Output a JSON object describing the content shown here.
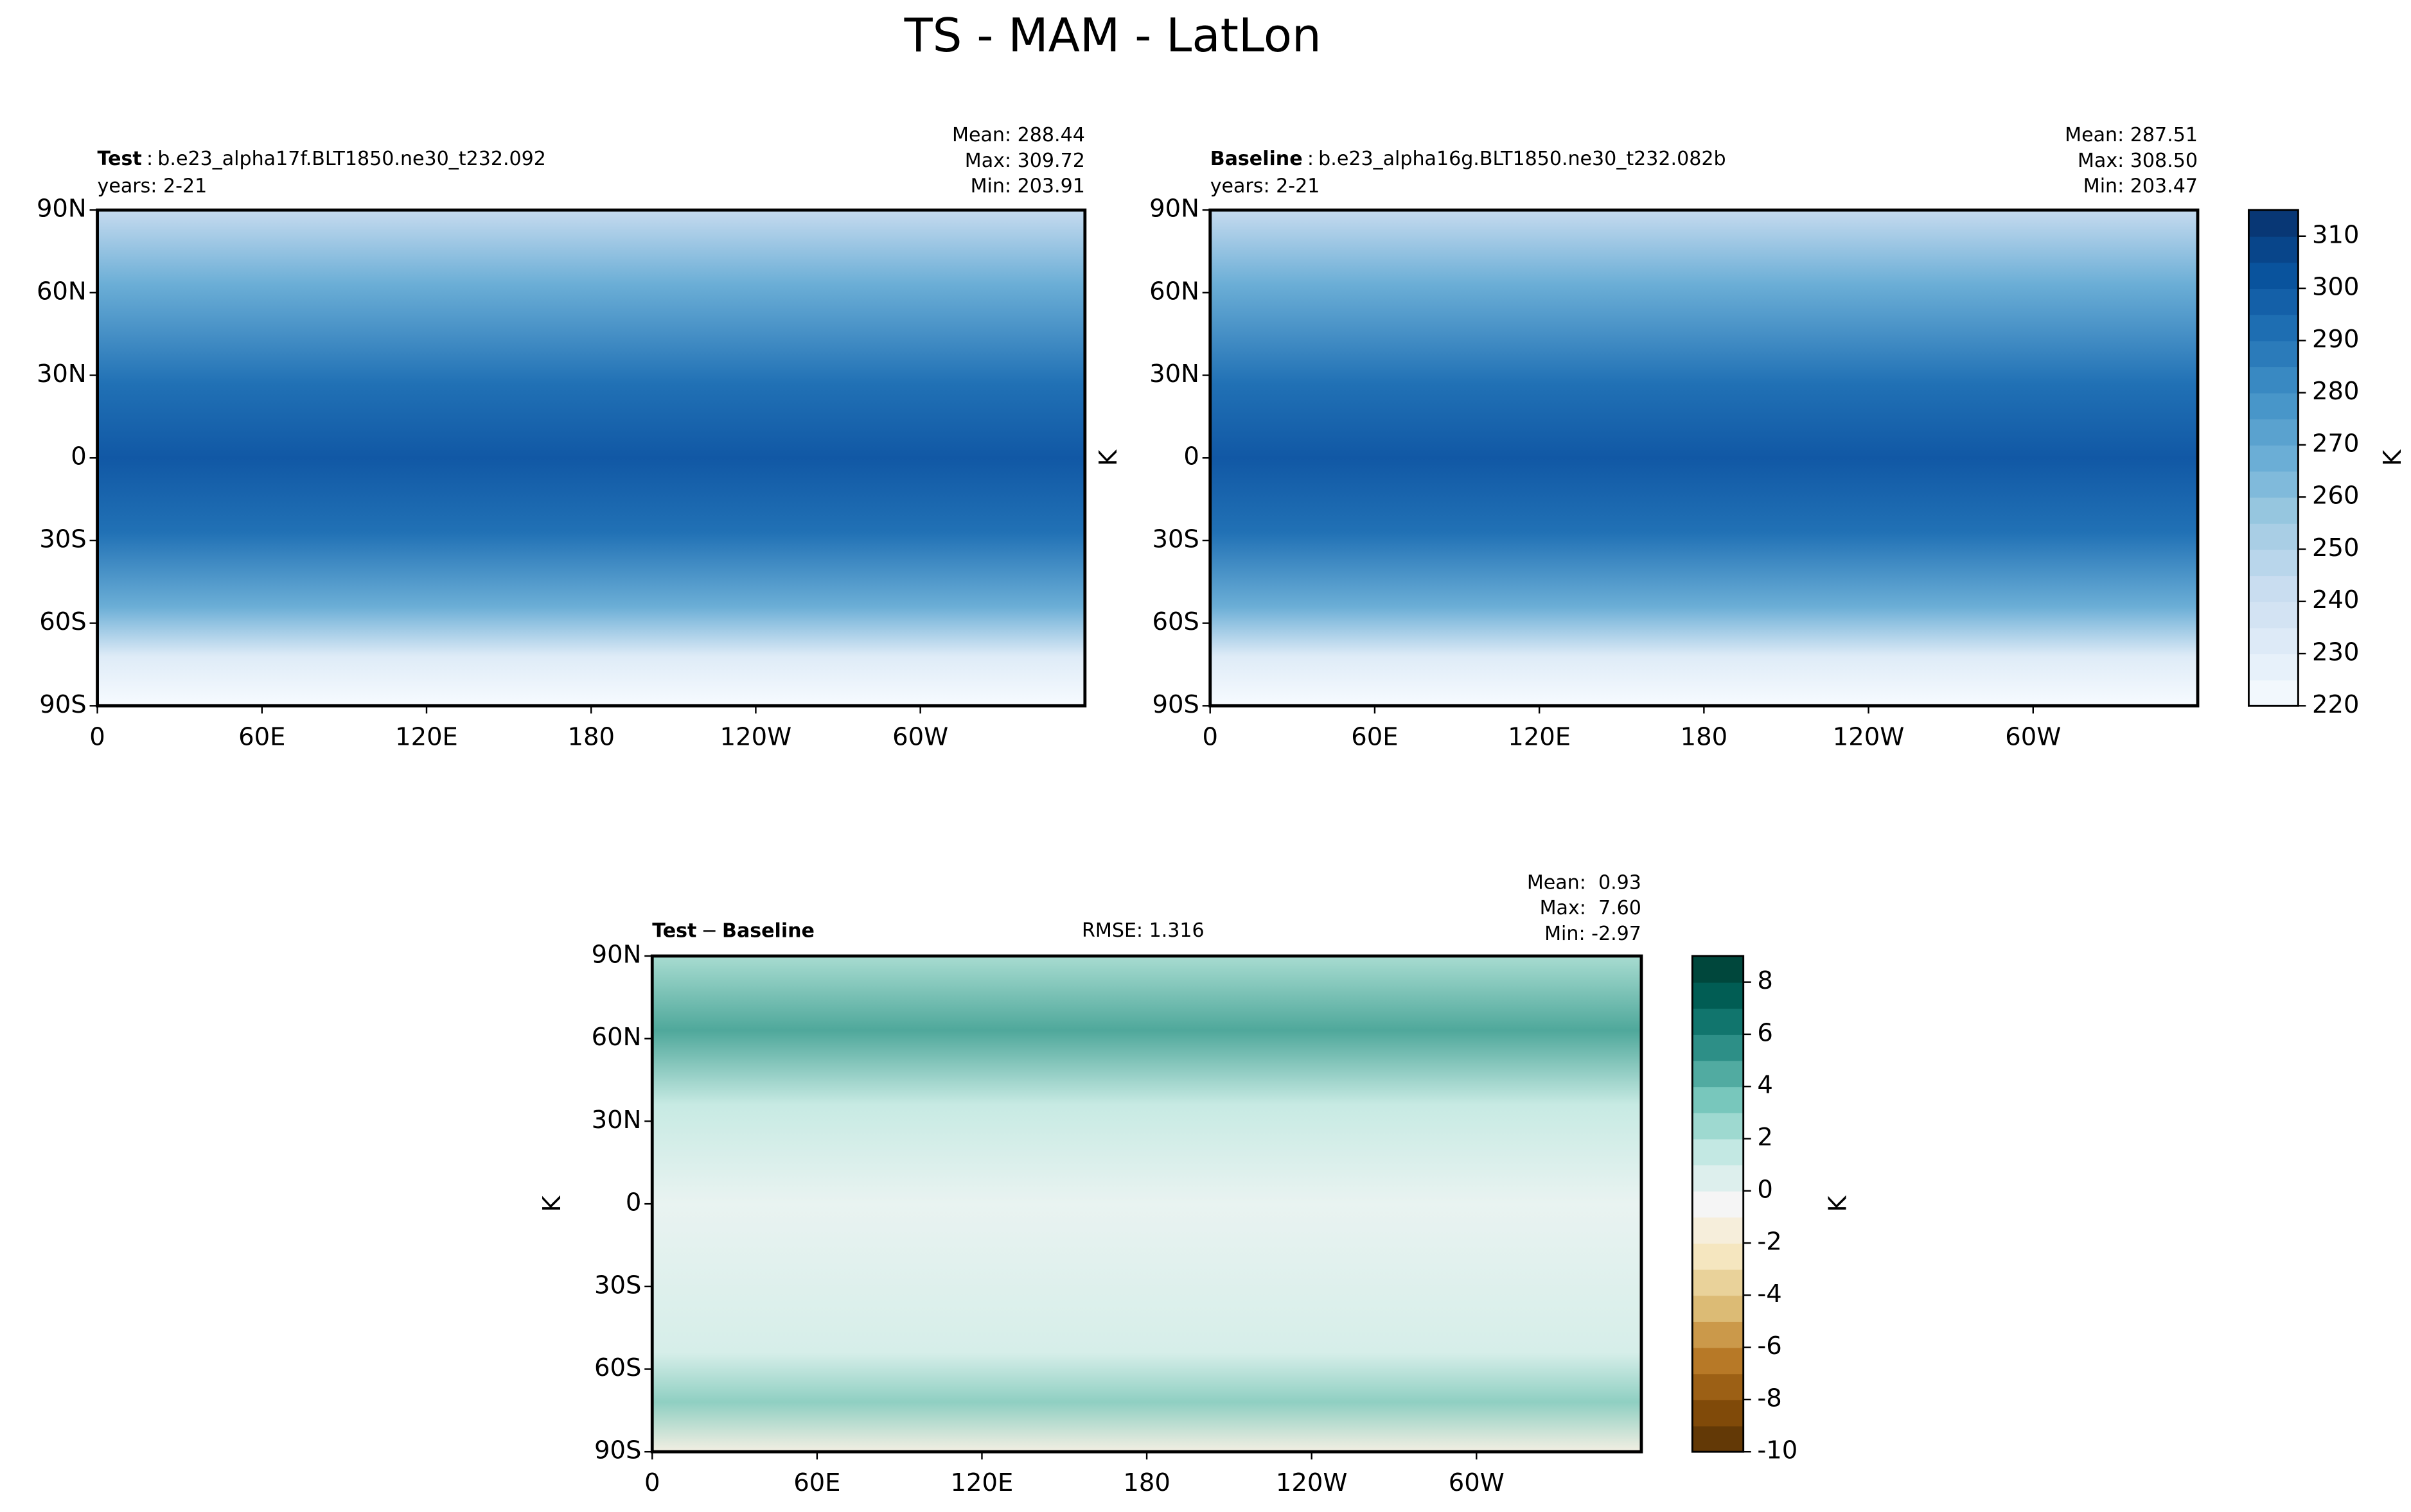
{
  "title": "TS - MAM - LatLon",
  "panels": [
    {
      "heading": [
        {
          "text": "Test",
          "bold": true
        },
        {
          "text": ":",
          "bold": false
        },
        {
          "text": "b.e23_alpha17f.BLT1850.ne30_t232.092",
          "bold": false
        }
      ],
      "years": "years: 2-21",
      "stats": [
        "Mean: 288.44",
        "Max: 309.72",
        "Min: 203.91"
      ],
      "xlim": [
        0,
        360
      ],
      "ylim": [
        -90,
        90
      ],
      "xticks": [
        0,
        {
          "value": 60,
          "label": "60E"
        },
        {
          "value": 120,
          "label": "120E"
        },
        180,
        {
          "value": 240,
          "label": "120W"
        },
        {
          "value": 300,
          "label": "60W"
        }
      ],
      "yticks": [
        {
          "value": -90,
          "label": "90S"
        },
        {
          "value": -60,
          "label": "60S"
        },
        {
          "value": -30,
          "label": "30S"
        },
        0,
        {
          "value": 30,
          "label": "30N"
        },
        {
          "value": 60,
          "label": "60N"
        },
        {
          "value": 90,
          "label": "90N"
        }
      ]
    },
    {
      "heading": [
        {
          "text": "Baseline",
          "bold": true
        },
        {
          "text": ":",
          "bold": false
        },
        {
          "text": "b.e23_alpha16g.BLT1850.ne30_t232.082b",
          "bold": false
        }
      ],
      "years": "years: 2-21",
      "stats": [
        "Mean: 287.51",
        "Max: 308.50",
        "Min: 203.47"
      ],
      "ylabel": "K",
      "xlim": [
        0,
        360
      ],
      "ylim": [
        -90,
        90
      ],
      "xticks": [
        0,
        {
          "value": 60,
          "label": "60E"
        },
        {
          "value": 120,
          "label": "120E"
        },
        180,
        {
          "value": 240,
          "label": "120W"
        },
        {
          "value": 300,
          "label": "60W"
        }
      ],
      "yticks": [
        {
          "value": -90,
          "label": "90S"
        },
        {
          "value": -60,
          "label": "60S"
        },
        {
          "value": -30,
          "label": "30S"
        },
        0,
        {
          "value": 30,
          "label": "30N"
        },
        {
          "value": 60,
          "label": "60N"
        },
        {
          "value": 90,
          "label": "90N"
        }
      ]
    },
    {
      "heading": [
        {
          "text": "Test",
          "bold": true
        },
        {
          "text": "−",
          "bold": false
        },
        {
          "text": "Baseline",
          "bold": true
        }
      ],
      "rmse": "RMSE: 1.316",
      "stats": [
        "Mean:  0.93",
        "Max:  7.60",
        "Min: -2.97"
      ],
      "ylabel": "K",
      "xlim": [
        0,
        360
      ],
      "ylim": [
        -90,
        90
      ],
      "xticks": [
        0,
        {
          "value": 60,
          "label": "60E"
        },
        {
          "value": 120,
          "label": "120E"
        },
        180,
        {
          "value": 240,
          "label": "120W"
        },
        {
          "value": 300,
          "label": "60W"
        }
      ],
      "yticks": [
        {
          "value": -90,
          "label": "90S"
        },
        {
          "value": -60,
          "label": "60S"
        },
        {
          "value": -30,
          "label": "30S"
        },
        0,
        {
          "value": 30,
          "label": "30N"
        },
        {
          "value": 60,
          "label": "60N"
        },
        {
          "value": 90,
          "label": "90N"
        }
      ]
    }
  ],
  "colorbars": [
    {
      "label": "K",
      "cmap": "Blues",
      "clim": [
        220,
        315
      ],
      "levels": [
        220,
        225,
        230,
        235,
        240,
        245,
        250,
        255,
        260,
        265,
        270,
        275,
        280,
        285,
        290,
        295,
        300,
        305,
        310,
        315
      ],
      "ticks": [
        220,
        230,
        240,
        250,
        260,
        270,
        280,
        290,
        300,
        310
      ]
    },
    {
      "label": "K",
      "cmap": "BrBG",
      "clim": [
        -10,
        9
      ],
      "levels": [
        -10,
        -9,
        -8,
        -7,
        -6,
        -5,
        -4,
        -3,
        -2,
        -1,
        0,
        1,
        2,
        3,
        4,
        5,
        6,
        7,
        8,
        9
      ],
      "ticks": [
        -10,
        -8,
        -6,
        -4,
        -2,
        0,
        2,
        4,
        6,
        8
      ]
    }
  ]
}
